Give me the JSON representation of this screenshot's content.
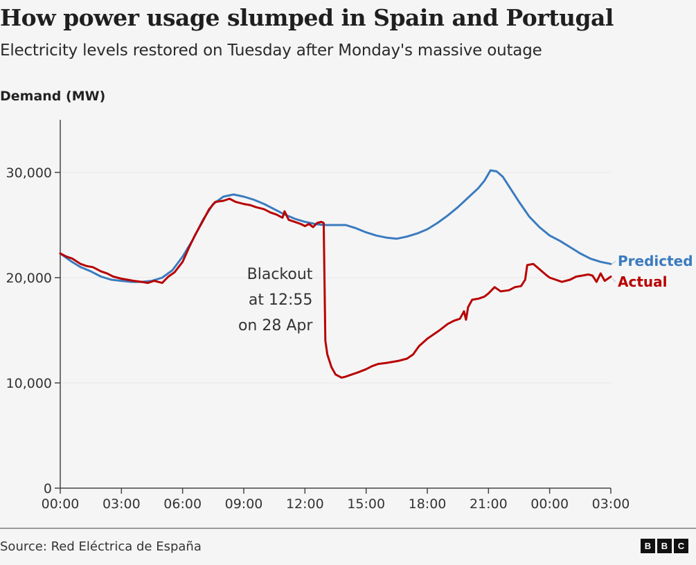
{
  "header": {
    "title": "How power usage slumped in Spain and Portugal",
    "subtitle": "Electricity levels restored on Tuesday after Monday's massive outage"
  },
  "footer": {
    "source": "Source: Red Eléctrica de España",
    "logo_letters": [
      "B",
      "B",
      "C"
    ]
  },
  "chart_data": {
    "type": "line",
    "title": "How power usage slumped in Spain and Portugal",
    "subtitle": "Electricity levels restored on Tuesday after Monday's massive outage",
    "ylabel": "Demand (MW)",
    "xlabel": "",
    "ylim": [
      0,
      35000
    ],
    "xlim_hours": [
      0,
      27
    ],
    "grid": true,
    "y_ticks": [
      {
        "value": 0,
        "label": "0"
      },
      {
        "value": 10000,
        "label": "10,000"
      },
      {
        "value": 20000,
        "label": "20,000"
      },
      {
        "value": 30000,
        "label": "30,000"
      }
    ],
    "x_ticks": [
      {
        "hour": 0,
        "label": "00:00"
      },
      {
        "hour": 3,
        "label": "03:00"
      },
      {
        "hour": 6,
        "label": "06:00"
      },
      {
        "hour": 9,
        "label": "09:00"
      },
      {
        "hour": 12,
        "label": "12:00"
      },
      {
        "hour": 15,
        "label": "15:00"
      },
      {
        "hour": 18,
        "label": "18:00"
      },
      {
        "hour": 21,
        "label": "21:00"
      },
      {
        "hour": 24,
        "label": "00:00"
      },
      {
        "hour": 27,
        "label": "03:00"
      }
    ],
    "annotation": {
      "lines": [
        "Blackout",
        "at 12:55",
        "on 28 Apr"
      ],
      "hour": 12.92
    },
    "legend_placement": "right, at line ends",
    "series": [
      {
        "name": "Predicted",
        "color": "#3a7bbf",
        "x_hours": [
          0,
          0.5,
          1,
          1.5,
          2,
          2.5,
          3,
          3.5,
          4,
          4.5,
          5,
          5.5,
          6,
          6.5,
          7,
          7.5,
          8,
          8.5,
          9,
          9.5,
          10,
          10.5,
          11,
          11.5,
          12,
          12.5,
          12.92,
          13.5,
          14,
          14.5,
          15,
          15.5,
          16,
          16.5,
          17,
          17.5,
          18,
          18.5,
          19,
          19.5,
          20,
          20.5,
          20.8,
          21.1,
          21.4,
          21.7,
          22,
          22.5,
          23,
          23.5,
          24,
          24.5,
          25,
          25.5,
          26,
          26.5,
          27
        ],
        "values": [
          22300,
          21600,
          21000,
          20600,
          20100,
          19800,
          19700,
          19600,
          19600,
          19700,
          20000,
          20700,
          22000,
          23600,
          25500,
          27000,
          27700,
          27900,
          27700,
          27400,
          27000,
          26500,
          26000,
          25600,
          25300,
          25100,
          25000,
          25000,
          25000,
          24700,
          24300,
          24000,
          23800,
          23700,
          23900,
          24200,
          24600,
          25200,
          25900,
          26700,
          27600,
          28500,
          29200,
          30200,
          30100,
          29600,
          28700,
          27200,
          25800,
          24800,
          24000,
          23500,
          22900,
          22300,
          21800,
          21500,
          21300
        ]
      },
      {
        "name": "Actual",
        "color": "#b80000",
        "x_hours": [
          0,
          0.3,
          0.6,
          1,
          1.3,
          1.6,
          2,
          2.3,
          2.6,
          3,
          3.3,
          3.6,
          4,
          4.3,
          4.6,
          5,
          5.3,
          5.6,
          6,
          6.3,
          6.6,
          7,
          7.3,
          7.6,
          8,
          8.3,
          8.6,
          9,
          9.3,
          9.6,
          10,
          10.3,
          10.6,
          10.9,
          11,
          11.2,
          11.5,
          11.8,
          12,
          12.2,
          12.4,
          12.6,
          12.8,
          12.92,
          13.0,
          13.1,
          13.3,
          13.5,
          13.8,
          14,
          14.3,
          14.6,
          15,
          15.3,
          15.6,
          16,
          16.3,
          16.6,
          17,
          17.3,
          17.6,
          18,
          18.3,
          18.6,
          19,
          19.3,
          19.6,
          19.8,
          19.9,
          20.0,
          20.2,
          20.5,
          20.8,
          21,
          21.3,
          21.6,
          22,
          22.3,
          22.6,
          22.8,
          22.9,
          23.2,
          23.5,
          23.8,
          24,
          24.3,
          24.6,
          25,
          25.3,
          25.6,
          25.9,
          26.1,
          26.3,
          26.5,
          26.7,
          27
        ],
        "values": [
          22300,
          22000,
          21800,
          21300,
          21100,
          21000,
          20600,
          20400,
          20100,
          19900,
          19800,
          19700,
          19600,
          19500,
          19700,
          19500,
          20100,
          20500,
          21500,
          22800,
          24000,
          25400,
          26500,
          27200,
          27300,
          27500,
          27200,
          27000,
          26900,
          26700,
          26500,
          26200,
          26000,
          25700,
          26300,
          25500,
          25300,
          25100,
          24900,
          25100,
          24800,
          25200,
          25300,
          25200,
          14000,
          12700,
          11500,
          10800,
          10500,
          10600,
          10800,
          11000,
          11300,
          11600,
          11800,
          11900,
          12000,
          12100,
          12300,
          12700,
          13500,
          14200,
          14600,
          15000,
          15600,
          15900,
          16100,
          16800,
          16000,
          17200,
          17900,
          18000,
          18200,
          18500,
          19100,
          18700,
          18800,
          19100,
          19200,
          19800,
          21200,
          21300,
          20800,
          20300,
          20000,
          19800,
          19600,
          19800,
          20100,
          20200,
          20300,
          20200,
          19600,
          20400,
          19700,
          20100,
          19900
        ]
      }
    ]
  }
}
